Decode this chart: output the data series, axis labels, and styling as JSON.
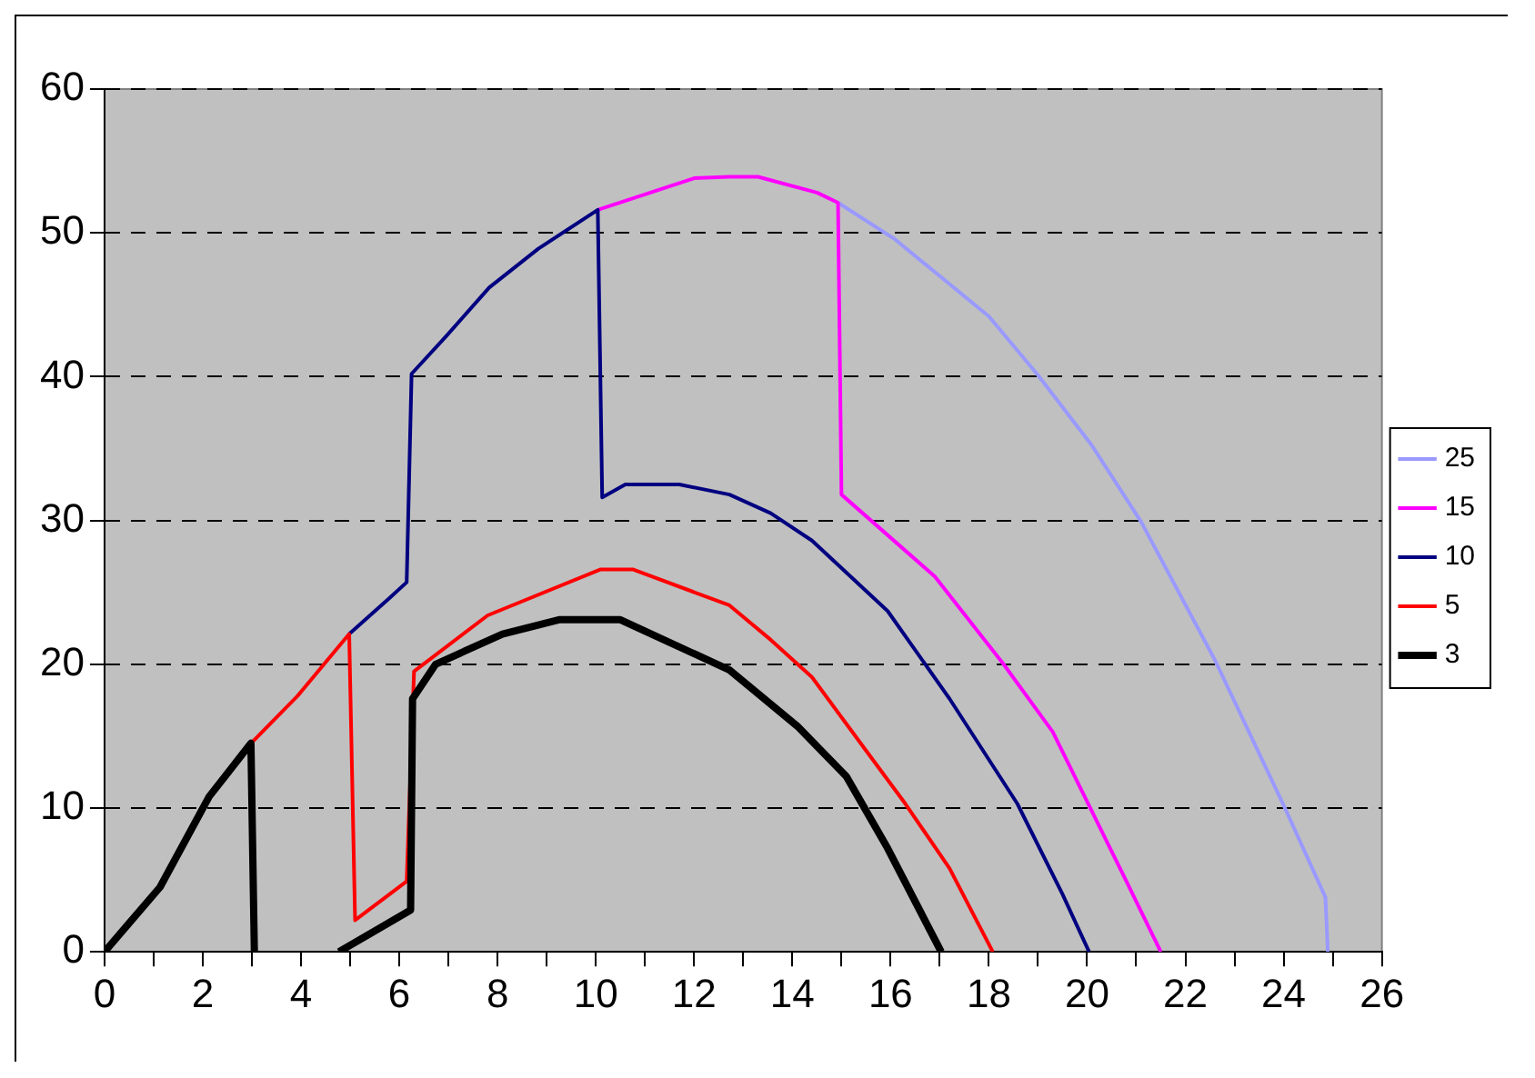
{
  "chart_data": {
    "type": "line",
    "xlim": [
      0,
      26
    ],
    "ylim": [
      0,
      60
    ],
    "xticks": [
      0,
      {
        "value": 1,
        "label": null
      },
      2,
      {
        "value": 3,
        "label": null
      },
      4,
      {
        "value": 5,
        "label": null
      },
      6,
      {
        "value": 7,
        "label": null
      },
      8,
      {
        "value": 9,
        "label": null
      },
      10,
      {
        "value": 11,
        "label": null
      },
      12,
      {
        "value": 13,
        "label": null
      },
      14,
      {
        "value": 15,
        "label": null
      },
      16,
      {
        "value": 17,
        "label": null
      },
      18,
      {
        "value": 19,
        "label": null
      },
      20,
      {
        "value": 21,
        "label": null
      },
      22,
      {
        "value": 23,
        "label": null
      },
      24,
      {
        "value": 25,
        "label": null
      },
      26
    ],
    "yticks": [
      0,
      10,
      20,
      30,
      40,
      50,
      60
    ],
    "grid": "y",
    "legend": "right",
    "marker": "none",
    "line_style": "solid",
    "series": [
      {
        "name": "25",
        "color": "#9999ff",
        "x": [
          14.93,
          16.07,
          18.0,
          19.0,
          20.1,
          21.1,
          22.6,
          24.0,
          24.85,
          24.9
        ],
        "values": [
          52.1,
          49.6,
          44.2,
          40.1,
          35.2,
          29.9,
          20.3,
          10.2,
          3.8,
          0
        ]
      },
      {
        "name": "15",
        "color": "#ff00ff",
        "x": [
          10.04,
          12.0,
          12.72,
          13.3,
          14.5,
          14.93,
          15.0,
          16.9,
          18.3,
          19.3,
          20.8,
          21.5
        ],
        "values": [
          51.6,
          53.8,
          53.9,
          53.9,
          52.8,
          52.1,
          31.8,
          26.1,
          20.0,
          15.3,
          4.9,
          0
        ]
      },
      {
        "name": "10",
        "color": "#000080",
        "x": [
          4.98,
          5.8,
          6.15,
          6.25,
          6.95,
          7.83,
          8.83,
          10.04,
          10.13,
          10.6,
          11.7,
          12.72,
          13.56,
          14.4,
          15.94,
          17.2,
          18.58,
          19.5,
          20.04
        ],
        "values": [
          22.1,
          24.6,
          25.7,
          40.2,
          42.8,
          46.2,
          48.9,
          51.6,
          31.6,
          32.5,
          32.5,
          31.8,
          30.5,
          28.6,
          23.7,
          17.6,
          10.3,
          4.0,
          0
        ]
      },
      {
        "name": "5",
        "color": "#ff0000",
        "x": [
          2.98,
          3.93,
          4.98,
          5.1,
          6.15,
          6.3,
          7.8,
          10.1,
          10.75,
          12.72,
          13.56,
          14.4,
          15.5,
          16.3,
          17.2,
          18.08
        ],
        "values": [
          14.5,
          17.8,
          22.1,
          2.2,
          4.9,
          19.5,
          23.4,
          26.6,
          26.6,
          24.1,
          21.7,
          19.1,
          14.0,
          10.3,
          5.8,
          0
        ]
      },
      {
        "name": "3",
        "color": "#000000",
        "x": [
          0,
          1.13,
          2.13,
          2.98,
          3.05,
          null,
          4.77,
          6.23,
          6.27,
          6.74,
          8.1,
          9.25,
          10.5,
          12.02,
          12.72,
          14.1,
          15.1,
          15.94,
          17.03
        ],
        "values": [
          0,
          4.5,
          10.8,
          14.5,
          0,
          null,
          0,
          2.9,
          17.6,
          20.0,
          22.1,
          23.1,
          23.1,
          20.7,
          19.6,
          15.7,
          12.2,
          7.2,
          0
        ]
      }
    ]
  }
}
